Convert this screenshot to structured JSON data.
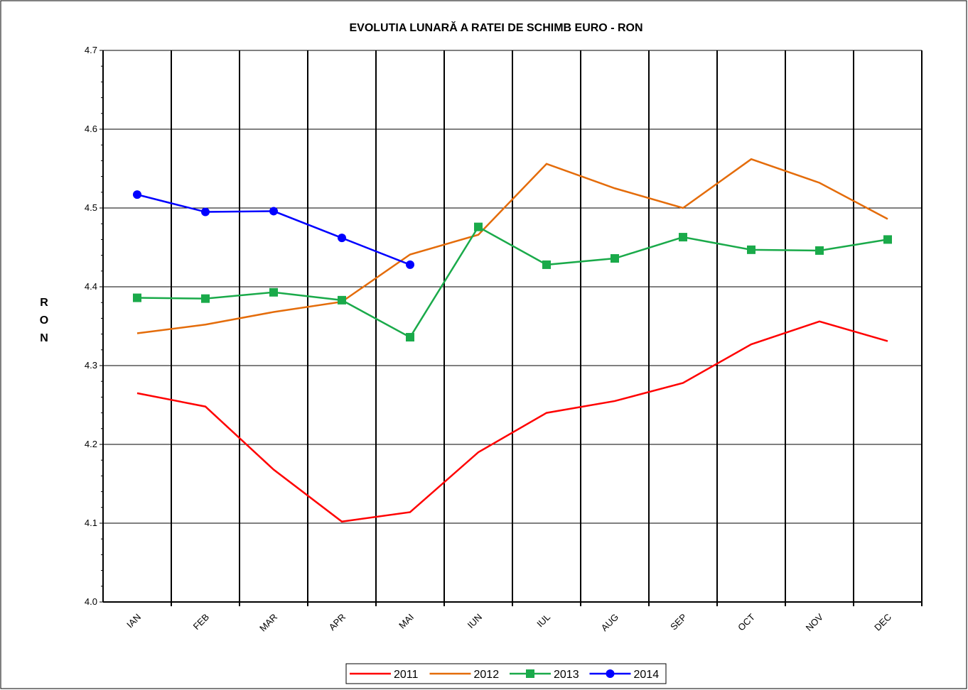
{
  "chart_data": {
    "type": "line",
    "title": "EVOLUTIA LUNARĂ A RATEI DE SCHIMB EURO - RON",
    "y_label": "RON",
    "categories": [
      "IAN",
      "FEB",
      "MAR",
      "APR",
      "MAI",
      "IUN",
      "IUL",
      "AUG",
      "SEP",
      "OCT",
      "NOV",
      "DEC"
    ],
    "ylim": [
      4.0,
      4.7
    ],
    "yticks": [
      {
        "value": 4,
        "label": "4.0"
      },
      4.1,
      4.2,
      4.3,
      4.4,
      4.5,
      4.6,
      4.7
    ],
    "grid": true,
    "legend": "bottom",
    "series": [
      {
        "name": "2011",
        "color": "#ff0000",
        "marker": "none",
        "values": [
          4.265,
          4.248,
          4.168,
          4.102,
          4.114,
          4.19,
          4.24,
          4.255,
          4.278,
          4.327,
          4.356,
          4.331
        ]
      },
      {
        "name": "2012",
        "color": "#e46c0a",
        "marker": "none",
        "values": [
          4.341,
          4.352,
          4.368,
          4.381,
          4.441,
          4.466,
          4.556,
          4.525,
          4.5,
          4.562,
          4.532,
          4.486
        ]
      },
      {
        "name": "2013",
        "color": "#1aaa4a",
        "marker": "square",
        "values": [
          4.386,
          4.385,
          4.393,
          4.383,
          4.336,
          4.476,
          4.428,
          4.436,
          4.463,
          4.447,
          4.446,
          4.46
        ]
      },
      {
        "name": "2014",
        "color": "#0000ff",
        "marker": "circle",
        "values": [
          4.517,
          4.495,
          4.496,
          4.462,
          4.428,
          null,
          null,
          null,
          null,
          null,
          null,
          null
        ]
      }
    ]
  }
}
